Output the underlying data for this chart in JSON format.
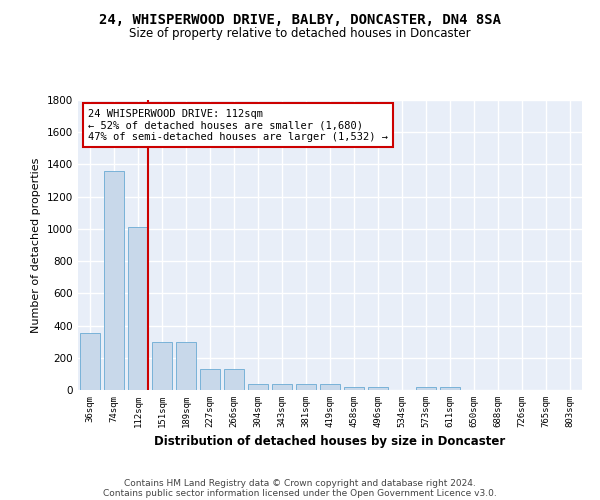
{
  "title": "24, WHISPERWOOD DRIVE, BALBY, DONCASTER, DN4 8SA",
  "subtitle": "Size of property relative to detached houses in Doncaster",
  "xlabel": "Distribution of detached houses by size in Doncaster",
  "ylabel": "Number of detached properties",
  "bar_color": "#c8d8ea",
  "bar_edge_color": "#6aaad4",
  "bg_color": "#e8eef8",
  "grid_color": "white",
  "annotation_line_color": "#cc0000",
  "categories": [
    "36sqm",
    "74sqm",
    "112sqm",
    "151sqm",
    "189sqm",
    "227sqm",
    "266sqm",
    "304sqm",
    "343sqm",
    "381sqm",
    "419sqm",
    "458sqm",
    "496sqm",
    "534sqm",
    "573sqm",
    "611sqm",
    "650sqm",
    "688sqm",
    "726sqm",
    "765sqm",
    "803sqm"
  ],
  "values": [
    355,
    1360,
    1010,
    295,
    295,
    130,
    130,
    40,
    40,
    35,
    35,
    20,
    20,
    0,
    20,
    20,
    0,
    0,
    0,
    0,
    0
  ],
  "property_bin_index": 2,
  "annotation_text": "24 WHISPERWOOD DRIVE: 112sqm\n← 52% of detached houses are smaller (1,680)\n47% of semi-detached houses are larger (1,532) →",
  "footer_line1": "Contains HM Land Registry data © Crown copyright and database right 2024.",
  "footer_line2": "Contains public sector information licensed under the Open Government Licence v3.0.",
  "ylim": [
    0,
    1800
  ],
  "yticks": [
    0,
    200,
    400,
    600,
    800,
    1000,
    1200,
    1400,
    1600,
    1800
  ]
}
